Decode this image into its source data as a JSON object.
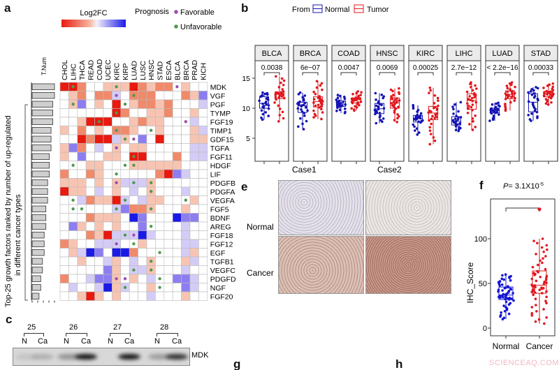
{
  "panels": {
    "a": "a",
    "b": "b",
    "c": "c",
    "e": "e",
    "f": "f",
    "g": "g",
    "h": "h"
  },
  "watermark": "SCIENCEAQ.COM",
  "chart_data": [
    {
      "type": "heatmap",
      "panel": "a",
      "legend_title": "Log2FC",
      "prognosis_title": "Prognosis",
      "prognosis_legend": [
        {
          "label": "Favorable",
          "color": "#9b4fb0"
        },
        {
          "label": "Unfavorable",
          "color": "#4f9a4f"
        }
      ],
      "tnum_label": "T.Num",
      "ylabel_line1": "Top-25  growth factors ranked by number of up-regulated",
      "ylabel_line2": "in different cancer types",
      "columns": [
        "CHOL",
        "LIHC",
        "THCA",
        "READ",
        "COAD",
        "UCEC",
        "KIRC",
        "KIRP",
        "LUAD",
        "LUSC",
        "HNSC",
        "STAD",
        "ESCA",
        "BLCA",
        "BRCA",
        "PRAD",
        "KICH"
      ],
      "rows": [
        "MDK",
        "VGF",
        "PGF",
        "TYMP",
        "FGF19",
        "TIMP1",
        "GDF15",
        "TGFA",
        "FGF11",
        "HDGF",
        "LIF",
        "PDGFB",
        "PDGFA",
        "VEGFA",
        "FGF5",
        "BDNF",
        "AREG",
        "FGF18",
        "FGF12",
        "EGF",
        "TGFB1",
        "VEGFC",
        "PDGFD",
        "NGF",
        "FGF20"
      ],
      "tnum": [
        13,
        13,
        12,
        12,
        12,
        11,
        11,
        11,
        10,
        10,
        10,
        9,
        9,
        9,
        8,
        8,
        8,
        7,
        7,
        7,
        6,
        6,
        5,
        5,
        4
      ],
      "values": [
        [
          3,
          3,
          2,
          0,
          0,
          1,
          1,
          1,
          3,
          2,
          1,
          2,
          2,
          0,
          1,
          0,
          0
        ],
        [
          0,
          1,
          2,
          0,
          2,
          2,
          -1,
          0,
          2,
          2,
          2,
          0,
          0,
          0,
          2,
          1,
          -2
        ],
        [
          0,
          1,
          -2,
          0,
          1,
          0,
          3,
          0,
          1,
          2,
          2,
          1,
          2,
          0,
          0,
          0,
          -1
        ],
        [
          0,
          0,
          0,
          0,
          0,
          0,
          3,
          2,
          0,
          0,
          1,
          1,
          2,
          0,
          0,
          1,
          0
        ],
        [
          0,
          0,
          1,
          3,
          3,
          3,
          0,
          0,
          1,
          2,
          1,
          1,
          0,
          0,
          0,
          -1,
          0
        ],
        [
          1,
          0,
          2,
          0,
          1,
          0,
          2,
          2,
          1,
          0,
          0,
          1,
          0,
          0,
          0,
          1,
          -1
        ],
        [
          0,
          0,
          3,
          2,
          3,
          3,
          -1,
          1,
          0,
          -2,
          0,
          3,
          0,
          0,
          0,
          1,
          1
        ],
        [
          1,
          -2,
          2,
          0,
          -1,
          0,
          1,
          0,
          1,
          1,
          0,
          0,
          0,
          0,
          0,
          -1,
          -1
        ],
        [
          1,
          0,
          -2,
          0,
          0,
          1,
          1,
          0,
          3,
          3,
          0,
          0,
          0,
          2,
          0,
          -1,
          -1
        ],
        [
          0,
          0,
          0,
          1,
          1,
          0,
          0,
          0,
          1,
          1,
          1,
          1,
          1,
          1,
          0,
          0,
          0
        ],
        [
          2,
          0,
          0,
          2,
          1,
          0,
          0,
          0,
          0,
          0,
          0,
          2,
          3,
          -2,
          -1,
          0,
          0
        ],
        [
          1,
          1,
          1,
          0,
          1,
          0,
          1,
          -1,
          -1,
          -1,
          1,
          0,
          0,
          0,
          0,
          0,
          0
        ],
        [
          3,
          1,
          1,
          0,
          -1,
          0,
          1,
          0,
          -1,
          0,
          1,
          0,
          0,
          0,
          -1,
          0,
          0
        ],
        [
          0,
          0,
          -1,
          2,
          1,
          1,
          3,
          -1,
          0,
          -1,
          1,
          1,
          0,
          0,
          0,
          1,
          0
        ],
        [
          0,
          0,
          0,
          0,
          0,
          0,
          -1,
          -2,
          2,
          2,
          1,
          0,
          0,
          0,
          1,
          0,
          0
        ],
        [
          0,
          0,
          0,
          2,
          1,
          1,
          1,
          0,
          -3,
          -2,
          0,
          0,
          0,
          -3,
          -2,
          -2,
          0
        ],
        [
          0,
          -2,
          1,
          0,
          1,
          0,
          1,
          0,
          0,
          -2,
          0,
          0,
          0,
          0,
          -1,
          0,
          0
        ],
        [
          0,
          0,
          0,
          2,
          1,
          3,
          -1,
          -1,
          -1,
          -3,
          -1,
          0,
          0,
          0,
          -1,
          0,
          0
        ],
        [
          2,
          1,
          0,
          0,
          -1,
          -1,
          -1,
          0,
          0,
          1,
          0,
          0,
          0,
          0,
          -1,
          -1,
          0
        ],
        [
          0,
          1,
          -1,
          -3,
          -2,
          0,
          -3,
          -3,
          2,
          0,
          0,
          0,
          0,
          0,
          -1,
          1,
          0
        ],
        [
          0,
          0,
          1,
          0,
          0,
          -1,
          1,
          0,
          -1,
          0,
          1,
          0,
          0,
          0,
          1,
          -1,
          0
        ],
        [
          0,
          0,
          0,
          0,
          0,
          -2,
          1,
          0,
          -1,
          -1,
          1,
          0,
          0,
          0,
          -1,
          0,
          0
        ],
        [
          2,
          0,
          0,
          -1,
          -2,
          -2,
          1,
          0,
          1,
          0,
          -1,
          0,
          0,
          -2,
          -2,
          -1,
          0
        ],
        [
          0,
          -1,
          0,
          0,
          -1,
          -3,
          1,
          -1,
          0,
          0,
          1,
          0,
          0,
          0,
          -2,
          -1,
          0
        ],
        [
          0,
          0,
          1,
          3,
          1,
          0,
          1,
          0,
          0,
          0,
          -1,
          0,
          0,
          0,
          1,
          0,
          0
        ]
      ],
      "prognosis_marks": [
        [
          0,
          1,
          "Unfavorable"
        ],
        [
          0,
          6,
          "Unfavorable"
        ],
        [
          0,
          13,
          "Favorable"
        ],
        [
          1,
          6,
          "Favorable"
        ],
        [
          1,
          8,
          "Unfavorable"
        ],
        [
          2,
          1,
          "Unfavorable"
        ],
        [
          2,
          7,
          "Unfavorable"
        ],
        [
          3,
          6,
          "Unfavorable"
        ],
        [
          4,
          4,
          "Unfavorable"
        ],
        [
          4,
          14,
          "Favorable"
        ],
        [
          5,
          6,
          "Unfavorable"
        ],
        [
          5,
          10,
          "Unfavorable"
        ],
        [
          6,
          7,
          "Unfavorable"
        ],
        [
          6,
          8,
          "Favorable"
        ],
        [
          7,
          6,
          "Favorable"
        ],
        [
          8,
          8,
          "Unfavorable"
        ],
        [
          9,
          1,
          "Unfavorable"
        ],
        [
          9,
          7,
          "Unfavorable"
        ],
        [
          9,
          8,
          "Unfavorable"
        ],
        [
          10,
          6,
          "Unfavorable"
        ],
        [
          11,
          6,
          "Favorable"
        ],
        [
          11,
          8,
          "Unfavorable"
        ],
        [
          11,
          10,
          "Unfavorable"
        ],
        [
          12,
          10,
          "Unfavorable"
        ],
        [
          13,
          1,
          "Unfavorable"
        ],
        [
          13,
          7,
          "Unfavorable"
        ],
        [
          13,
          14,
          "Unfavorable"
        ],
        [
          14,
          1,
          "Unfavorable"
        ],
        [
          14,
          2,
          "Unfavorable"
        ],
        [
          14,
          6,
          "Unfavorable"
        ],
        [
          14,
          10,
          "Unfavorable"
        ],
        [
          16,
          10,
          "Unfavorable"
        ],
        [
          17,
          7,
          "Unfavorable"
        ],
        [
          17,
          8,
          "Favorable"
        ],
        [
          18,
          6,
          "Favorable"
        ],
        [
          18,
          8,
          "Unfavorable"
        ],
        [
          19,
          11,
          "Unfavorable"
        ],
        [
          20,
          10,
          "Unfavorable"
        ],
        [
          21,
          8,
          "Unfavorable"
        ],
        [
          21,
          10,
          "Unfavorable"
        ],
        [
          22,
          6,
          "Favorable"
        ],
        [
          22,
          7,
          "Favorable"
        ],
        [
          22,
          11,
          "Unfavorable"
        ],
        [
          23,
          7,
          "Unfavorable"
        ],
        [
          23,
          11,
          "Unfavorable"
        ]
      ],
      "color_scale": {
        "-3": "#1a1ae6",
        "-2": "#8c7ef0",
        "-1": "#d4ccf6",
        "0": "#ffffff",
        "1": "#f8c4b2",
        "2": "#f08a6a",
        "3": "#e8190e"
      }
    },
    {
      "type": "box",
      "panel": "b",
      "legend_title": "From",
      "series": [
        {
          "name": "Normal",
          "color": "#1414b4"
        },
        {
          "name": "Tumor",
          "color": "#e0181e"
        }
      ],
      "yticks": [
        5,
        10,
        15
      ],
      "ylim": [
        1,
        17.8
      ],
      "facets": [
        {
          "name": "BLCA",
          "p": "0.0038",
          "Normal": [
            8.1,
            10.0,
            10.8,
            11.9,
            12.6
          ],
          "Tumor": [
            7.8,
            11.6,
            12.3,
            12.7,
            15.3
          ]
        },
        {
          "name": "BRCA",
          "p": "6e−07",
          "Normal": [
            6.5,
            9.3,
            10.4,
            11.0,
            12.6
          ],
          "Tumor": [
            8.2,
            10.2,
            11.1,
            11.9,
            14.5
          ]
        },
        {
          "name": "COAD",
          "p": "0.0047",
          "Normal": [
            9.2,
            10.3,
            10.7,
            11.2,
            12.2
          ],
          "Tumor": [
            9.6,
            10.9,
            11.4,
            11.7,
            12.8
          ]
        },
        {
          "name": "HNSC",
          "p": "0.0069",
          "Normal": [
            7.5,
            9.1,
            9.9,
            10.8,
            12.5
          ],
          "Tumor": [
            7.7,
            10.0,
            10.9,
            11.7,
            13.3
          ]
        },
        {
          "name": "KIRC",
          "p": "0.00025",
          "Normal": [
            5.6,
            7.7,
            8.3,
            8.8,
            10.5
          ],
          "Tumor": [
            4.0,
            8.1,
            9.2,
            10.3,
            13.4
          ]
        },
        {
          "name": "LIHC",
          "p": "2.7e−12",
          "Normal": [
            6.2,
            7.2,
            7.8,
            8.6,
            11.0
          ],
          "Tumor": [
            6.4,
            9.8,
            11.3,
            12.4,
            14.3
          ]
        },
        {
          "name": "LUAD",
          "p": "< 2.2e−16",
          "Normal": [
            7.9,
            9.2,
            9.6,
            10.0,
            10.9
          ],
          "Tumor": [
            9.6,
            11.6,
            12.3,
            12.9,
            14.3
          ]
        },
        {
          "name": "STAD",
          "p": "0.00033",
          "Normal": [
            7.9,
            9.4,
            11.0,
            12.4,
            13.5
          ],
          "Tumor": [
            10.6,
            11.9,
            12.4,
            12.8,
            14.1
          ]
        }
      ]
    },
    {
      "type": "box",
      "panel": "f",
      "title_prefix": "P",
      "title_rest": "= 3.1X10",
      "title_exp": "-5",
      "ylabel": "IHC_Score",
      "yticks": [
        0,
        50,
        100
      ],
      "categories": [
        "Normal",
        "Cancer"
      ],
      "colors": [
        "#1414d4",
        "#e0181e"
      ],
      "stats": [
        [
          10,
          32,
          37,
          46,
          60
        ],
        [
          5,
          39,
          48,
          64,
          133
        ]
      ]
    }
  ],
  "blot": {
    "groups": [
      "25",
      "26",
      "27",
      "28"
    ],
    "lanes": [
      "N",
      "Ca"
    ],
    "target": "MDK",
    "intensity": [
      [
        0.1,
        0.2
      ],
      [
        0.35,
        1.0
      ],
      [
        0.0,
        1.0
      ],
      [
        0.3,
        0.85
      ]
    ]
  },
  "histology": {
    "columns": [
      "Case1",
      "Case2"
    ],
    "rows": [
      "Normal",
      "Cancer"
    ]
  }
}
